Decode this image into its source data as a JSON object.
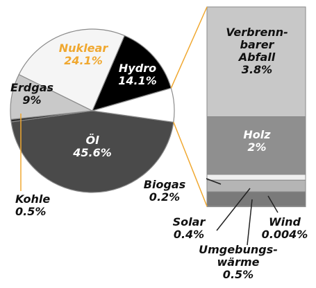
{
  "chart_data": [
    {
      "type": "pie",
      "categories": [
        "Öl",
        null,
        "Erdgas",
        "Nuklear",
        "Hydro",
        null
      ],
      "values": [
        45.6,
        0.5,
        9,
        24.1,
        14.1,
        6.7
      ],
      "value_labels": [
        "45.6%",
        null,
        "9%",
        "24.1%",
        "14.1%",
        null
      ],
      "colors": [
        "#4a4a4a",
        "#2e2e2e",
        "#c9c9c9",
        "#f5f5f5",
        "#000000",
        "#ffffff"
      ],
      "label_colors": [
        "#ffffff",
        null,
        "#111111",
        "#f0a830",
        "#ffffff",
        null
      ]
    },
    {
      "type": "bar",
      "stacked": true,
      "categories": [
        "Verbrenn-\nbarer\nAbfall",
        "Holz",
        "Biogas",
        "Solar",
        "Umgebungs-\nwärme",
        "Wind",
        "Kohle"
      ],
      "values": [
        3.8,
        2,
        0.2,
        0.4,
        0.5,
        0.004,
        0.5
      ],
      "value_labels": [
        "3.8%",
        "2%",
        "0.2%",
        "0.4%",
        "0.5%",
        "0.004%",
        "0.5%"
      ],
      "colors": [
        "#c8c8c8",
        "#8f8f8f",
        "#efefef",
        "#b5b5b5",
        "#7a7a7a",
        "#3c3c3c"
      ],
      "label_colors": [
        "#111111",
        "#ffffff",
        "#111111",
        "#111111",
        "#111111",
        "#111111",
        "#111111"
      ],
      "connector_color": "#f0a830"
    }
  ]
}
